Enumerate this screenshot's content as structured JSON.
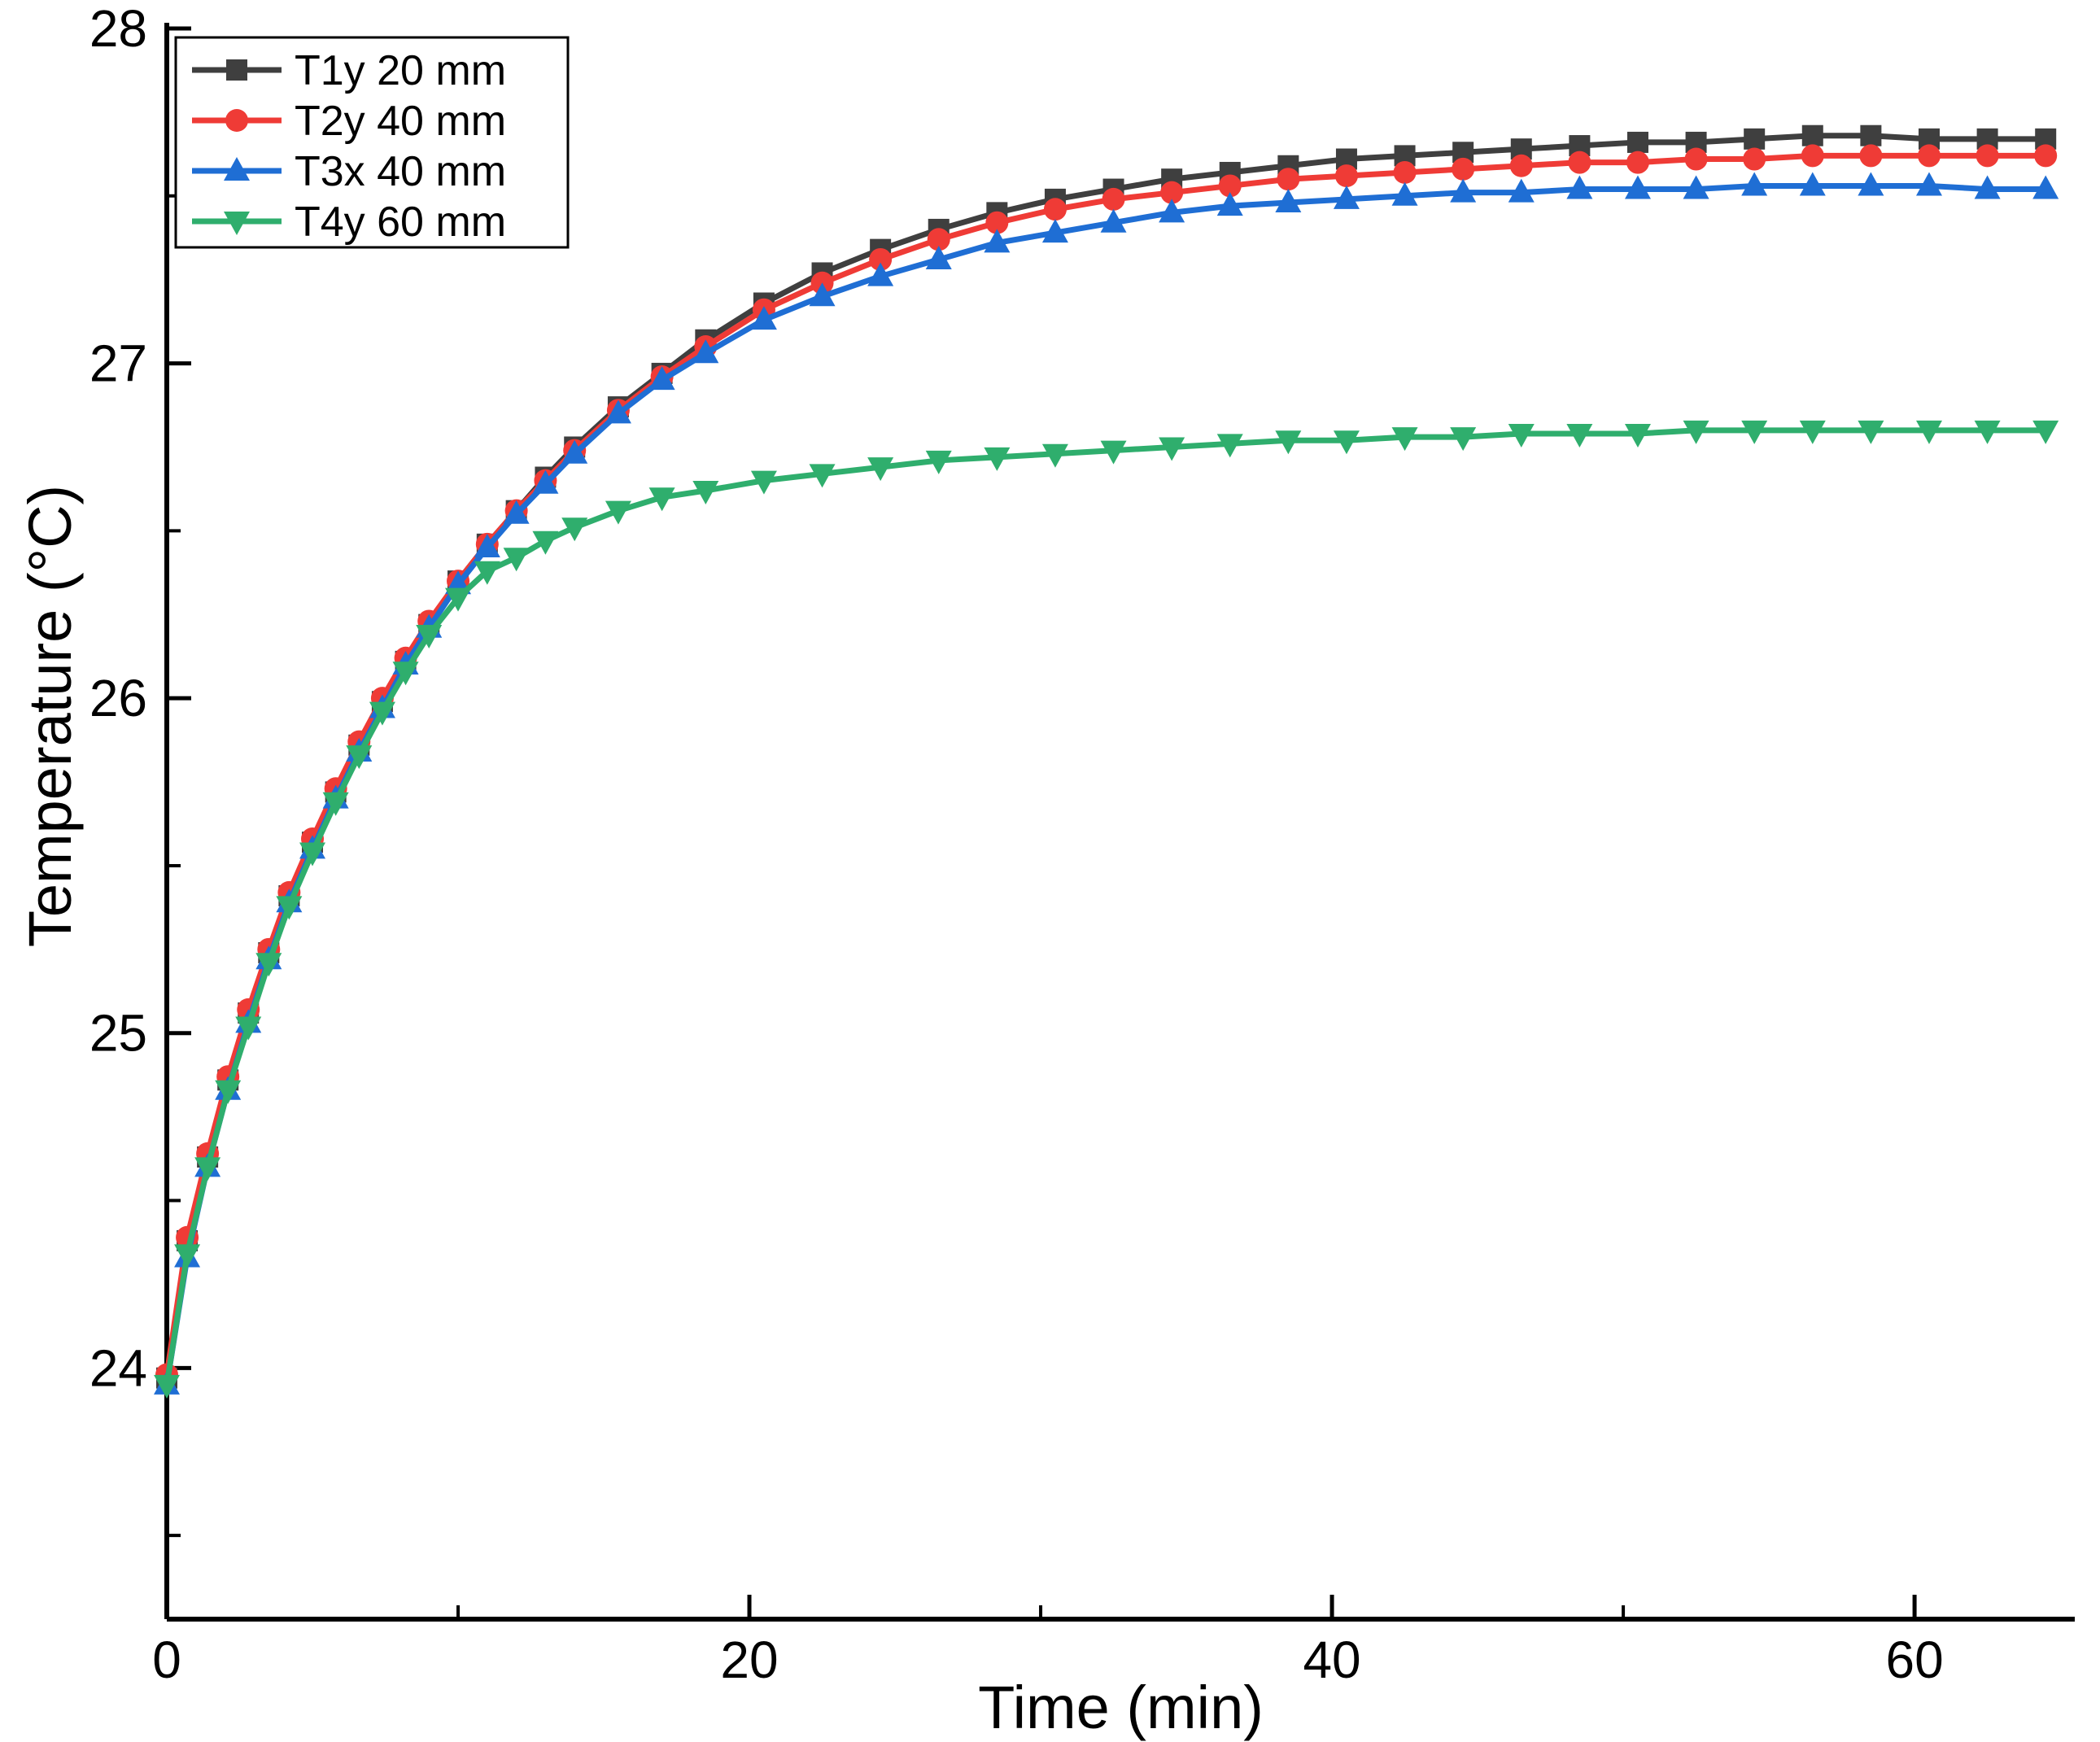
{
  "chart_data": {
    "type": "line",
    "title": "",
    "xlabel": "Time (min)",
    "ylabel": "Temperature (°C)",
    "xlim": [
      0,
      65.5
    ],
    "ylim": [
      23.25,
      28
    ],
    "xticks": [
      0,
      20,
      40,
      60
    ],
    "yticks": [
      24,
      25,
      26,
      27,
      28
    ],
    "x_minor_ticks": [
      10,
      30,
      50
    ],
    "y_minor_ticks": [
      23.5,
      24.5,
      25.5,
      26.5,
      27.5
    ],
    "grid": false,
    "legend_position": "top-left",
    "x": [
      0,
      0.7,
      1.4,
      2.1,
      2.8,
      3.5,
      4.2,
      5,
      5.8,
      6.6,
      7.4,
      8.2,
      9,
      10,
      11,
      12,
      13,
      14,
      15.5,
      17,
      18.5,
      20.5,
      22.5,
      24.5,
      26.5,
      28.5,
      30.5,
      32.5,
      34.5,
      36.5,
      38.5,
      40.5,
      42.5,
      44.5,
      46.5,
      48.5,
      50.5,
      52.5,
      54.5,
      56.5,
      58.5,
      60.5,
      62.5,
      64.5
    ],
    "series": [
      {
        "name": "T1y 20 mm",
        "color": "#3f3f3f",
        "marker": "square",
        "values": [
          23.97,
          24.38,
          24.63,
          24.86,
          25.06,
          25.24,
          25.41,
          25.57,
          25.72,
          25.86,
          25.99,
          26.11,
          26.22,
          26.35,
          26.46,
          26.56,
          26.66,
          26.75,
          26.87,
          26.97,
          27.07,
          27.18,
          27.27,
          27.34,
          27.4,
          27.45,
          27.49,
          27.52,
          27.55,
          27.57,
          27.59,
          27.61,
          27.62,
          27.63,
          27.64,
          27.65,
          27.66,
          27.66,
          27.67,
          27.68,
          27.68,
          27.67,
          27.67,
          27.67
        ]
      },
      {
        "name": "T2y 40 mm",
        "color": "#ef3b36",
        "marker": "circle",
        "values": [
          23.98,
          24.39,
          24.64,
          24.87,
          25.07,
          25.25,
          25.42,
          25.58,
          25.73,
          25.87,
          26.0,
          26.12,
          26.23,
          26.35,
          26.46,
          26.56,
          26.65,
          26.74,
          26.86,
          26.96,
          27.05,
          27.16,
          27.24,
          27.31,
          27.37,
          27.42,
          27.46,
          27.49,
          27.51,
          27.53,
          27.55,
          27.56,
          27.57,
          27.58,
          27.59,
          27.6,
          27.6,
          27.61,
          27.61,
          27.62,
          27.62,
          27.62,
          27.62,
          27.62
        ]
      },
      {
        "name": "T3x 40 mm",
        "color": "#1f6ed4",
        "marker": "triangle-up",
        "values": [
          23.95,
          24.33,
          24.6,
          24.83,
          25.03,
          25.22,
          25.39,
          25.55,
          25.7,
          25.84,
          25.97,
          26.1,
          26.21,
          26.34,
          26.45,
          26.55,
          26.64,
          26.73,
          26.85,
          26.95,
          27.03,
          27.13,
          27.2,
          27.26,
          27.31,
          27.36,
          27.39,
          27.42,
          27.45,
          27.47,
          27.48,
          27.49,
          27.5,
          27.51,
          27.51,
          27.52,
          27.52,
          27.52,
          27.53,
          27.53,
          27.53,
          27.53,
          27.52,
          27.52
        ]
      },
      {
        "name": "T4y 60 mm",
        "color": "#2fae6d",
        "marker": "triangle-down",
        "values": [
          23.95,
          24.34,
          24.6,
          24.83,
          25.02,
          25.21,
          25.38,
          25.54,
          25.69,
          25.83,
          25.96,
          26.08,
          26.19,
          26.3,
          26.38,
          26.42,
          26.47,
          26.51,
          26.56,
          26.6,
          26.62,
          26.65,
          26.67,
          26.69,
          26.71,
          26.72,
          26.73,
          26.74,
          26.75,
          26.76,
          26.77,
          26.77,
          26.78,
          26.78,
          26.79,
          26.79,
          26.79,
          26.8,
          26.8,
          26.8,
          26.8,
          26.8,
          26.8,
          26.8
        ]
      }
    ]
  },
  "colors": {
    "axis": "#000000",
    "background": "#ffffff"
  }
}
